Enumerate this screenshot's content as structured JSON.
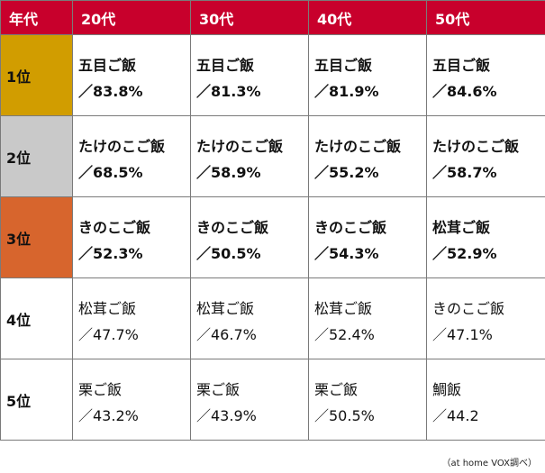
{
  "header": {
    "corner": "年代",
    "columns": [
      "20代",
      "30代",
      "40代",
      "50代"
    ]
  },
  "rank_colors": {
    "gold": "#d19d00",
    "silver": "#c9c9c9",
    "bronze": "#d7652d",
    "header": "#c8002c"
  },
  "rows": [
    {
      "rank": "1位",
      "cells": [
        {
          "dish": "五目ご飯",
          "pct": "／83.8%"
        },
        {
          "dish": "五目ご飯",
          "pct": "／81.3%"
        },
        {
          "dish": "五目ご飯",
          "pct": "／81.9%"
        },
        {
          "dish": "五目ご飯",
          "pct": "／84.6%"
        }
      ]
    },
    {
      "rank": "2位",
      "cells": [
        {
          "dish": "たけのこご飯",
          "pct": "／68.5%"
        },
        {
          "dish": "たけのこご飯",
          "pct": "／58.9%"
        },
        {
          "dish": "たけのこご飯",
          "pct": "／55.2%"
        },
        {
          "dish": "たけのこご飯",
          "pct": "／58.7%"
        }
      ]
    },
    {
      "rank": "3位",
      "cells": [
        {
          "dish": "きのこご飯",
          "pct": "／52.3%"
        },
        {
          "dish": "きのこご飯",
          "pct": "／50.5%"
        },
        {
          "dish": "きのこご飯",
          "pct": "／54.3%"
        },
        {
          "dish": "松茸ご飯",
          "pct": "／52.9%"
        }
      ]
    },
    {
      "rank": "4位",
      "cells": [
        {
          "dish": "松茸ご飯",
          "pct": "／47.7%"
        },
        {
          "dish": "松茸ご飯",
          "pct": "／46.7%"
        },
        {
          "dish": "松茸ご飯",
          "pct": "／52.4%"
        },
        {
          "dish": "きのこご飯",
          "pct": "／47.1%"
        }
      ]
    },
    {
      "rank": "5位",
      "cells": [
        {
          "dish": "栗ご飯",
          "pct": "／43.2%"
        },
        {
          "dish": "栗ご飯",
          "pct": "／43.9%"
        },
        {
          "dish": "栗ご飯",
          "pct": "／50.5%"
        },
        {
          "dish": "鯛飯",
          "pct": "／44.2"
        }
      ]
    }
  ],
  "source_note": "（at home VOX調べ）"
}
